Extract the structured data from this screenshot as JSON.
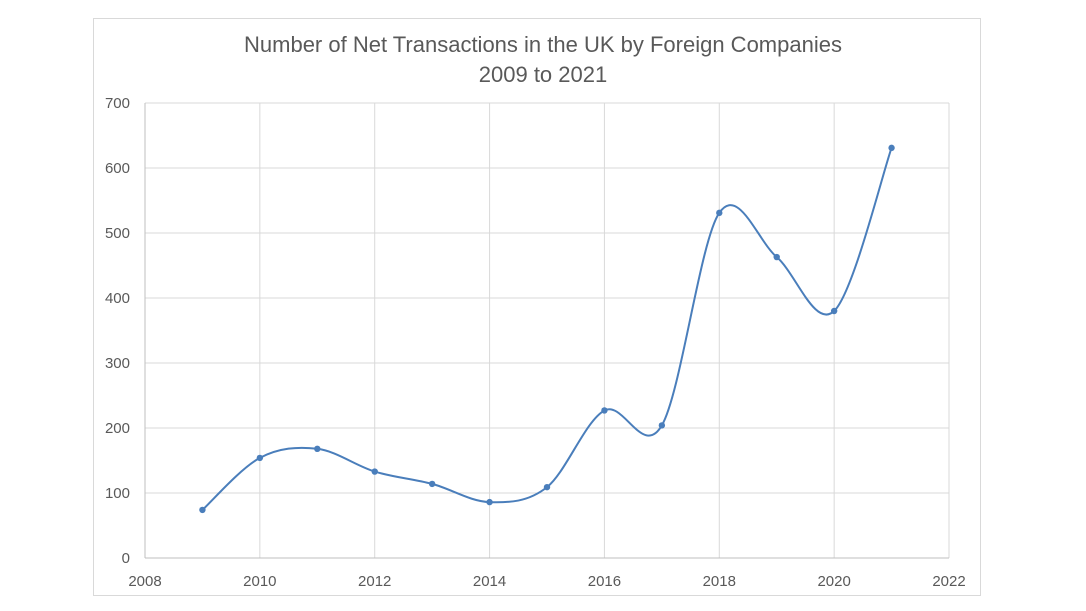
{
  "chart_data": {
    "type": "line",
    "title": "Number of Net Transactions in the UK by Foreign Companies",
    "subtitle": "2009 to 2021",
    "xlabel": "",
    "ylabel": "",
    "xlim": [
      2008,
      2022
    ],
    "ylim": [
      0,
      700
    ],
    "xticks": [
      2008,
      2010,
      2012,
      2014,
      2016,
      2018,
      2020,
      2022
    ],
    "yticks": [
      0,
      100,
      200,
      300,
      400,
      500,
      600,
      700
    ],
    "grid": true,
    "smooth": true,
    "series": [
      {
        "color": "#4a7ebb",
        "x": [
          2009,
          2010,
          2011,
          2012,
          2013,
          2014,
          2015,
          2016,
          2017,
          2018,
          2019,
          2020,
          2021
        ],
        "y": [
          74,
          154,
          168,
          133,
          114,
          86,
          109,
          227,
          204,
          531,
          463,
          380,
          631
        ]
      }
    ]
  }
}
